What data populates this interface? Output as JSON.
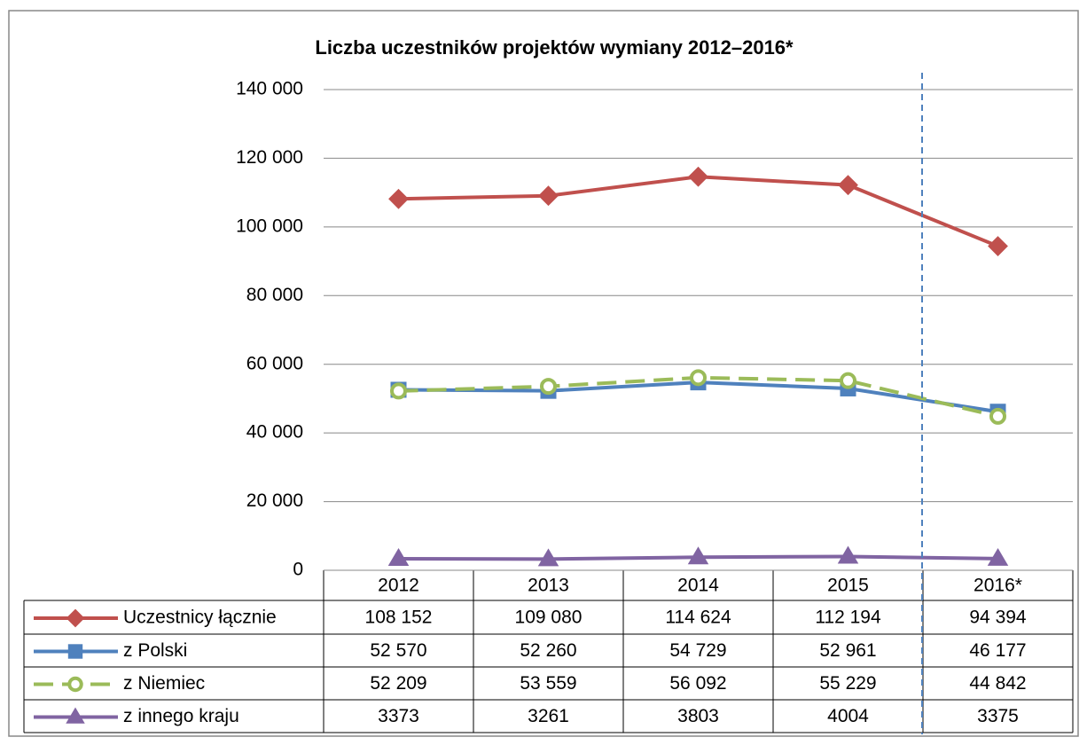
{
  "chart_data": {
    "type": "line",
    "title": "Liczba uczestników projektów wymiany 2012–2016*",
    "categories": [
      "2012",
      "2013",
      "2014",
      "2015",
      "2016*"
    ],
    "ylim": [
      0,
      140000
    ],
    "yticks": [
      0,
      {
        "value": 20000,
        "label": "20 000"
      },
      {
        "value": 40000,
        "label": "40 000"
      },
      {
        "value": 60000,
        "label": "60 000"
      },
      {
        "value": 80000,
        "label": "80 000"
      },
      {
        "value": 100000,
        "label": "100 000"
      },
      {
        "value": 120000,
        "label": "120 000"
      },
      {
        "value": 140000,
        "label": "140 000"
      }
    ],
    "grid": true,
    "series": [
      {
        "name": "Uczestnicy łącznie",
        "color": "#c0504d",
        "marker": "diamond",
        "line_style": "solid",
        "values": [
          108152,
          109080,
          114624,
          112194,
          94394
        ],
        "value_labels": [
          "108 152",
          "109 080",
          "114 624",
          "112 194",
          "94 394"
        ]
      },
      {
        "name": "z Polski",
        "color": "#4f81bd",
        "marker": "square",
        "line_style": "solid",
        "values": [
          52570,
          52260,
          54729,
          52961,
          46177
        ],
        "value_labels": [
          "52 570",
          "52 260",
          "54 729",
          "52 961",
          "46 177"
        ]
      },
      {
        "name": "z Niemiec",
        "color": "#9bbb59",
        "marker": "circle",
        "line_style": "dashed",
        "values": [
          52209,
          53559,
          56092,
          55229,
          44842
        ],
        "value_labels": [
          "52 209",
          "53 559",
          "56 092",
          "55 229",
          "44 842"
        ]
      },
      {
        "name": "z innego kraju",
        "color": "#8064a2",
        "marker": "triangle",
        "line_style": "solid",
        "values": [
          3373,
          3261,
          3803,
          4004,
          3375
        ]
      }
    ]
  }
}
